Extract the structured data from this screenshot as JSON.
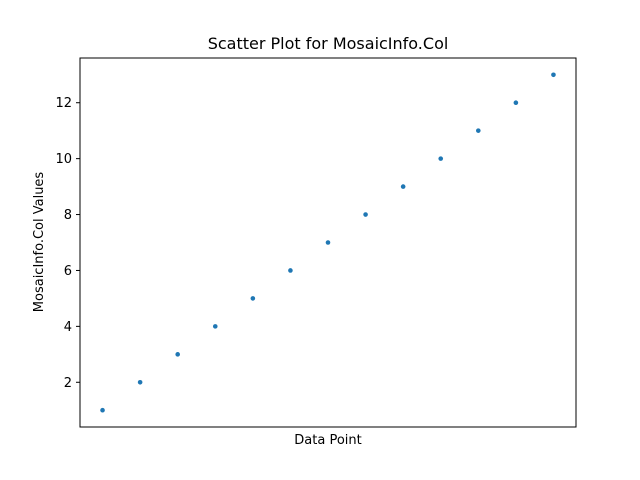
{
  "chart_data": {
    "type": "scatter",
    "title": "Scatter Plot for MosaicInfo.Col",
    "xlabel": "Data Point",
    "ylabel": "MosaicInfo.Col Values",
    "x": [
      0,
      1,
      2,
      3,
      4,
      5,
      6,
      7,
      8,
      9,
      10,
      11,
      12
    ],
    "y": [
      1,
      2,
      3,
      4,
      5,
      6,
      7,
      8,
      9,
      10,
      11,
      12,
      13
    ],
    "xlim": [
      -0.6,
      12.6
    ],
    "ylim": [
      0.4,
      13.6
    ],
    "yticks": [
      2,
      4,
      6,
      8,
      10,
      12
    ],
    "xticks_visible": false,
    "grid": false,
    "marker_color": "#1f77b4"
  }
}
